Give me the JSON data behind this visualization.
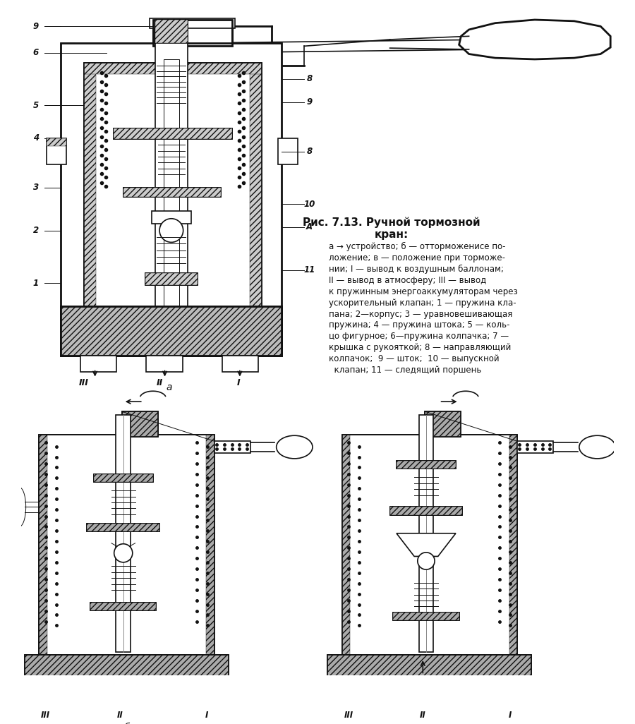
{
  "title_line1": "Рис. 7.13. Ручной тормозной",
  "title_line2": "кран:",
  "desc_lines": [
    "а → устройство; б — отторможенисе по-",
    "ложение; в — положение при торможе-",
    "нии; I — вывод к воздушным баллонам;",
    "II — вывод в атмосферу; III — вывод",
    "к пружинным энергоаккумуляторам через",
    "ускорительный клапан; 1 — пружина кла-",
    "пана; 2—корпус; 3 — уравновешивающая",
    "пружина; 4 — пружина штока; 5 — коль-",
    "цо фигурное; 6—пружина колпачка; 7 —",
    "крышка с рукояткой; 8 — направляющий",
    "колпачок;  9 — шток;  10 — выпускной",
    "  клапан; 11 — следящий поршень"
  ],
  "bg_color": "#ffffff",
  "lc": "#111111",
  "lc_gray": "#888888",
  "hatch_color": "#333333",
  "fig_width": 9.0,
  "fig_height": 10.26
}
